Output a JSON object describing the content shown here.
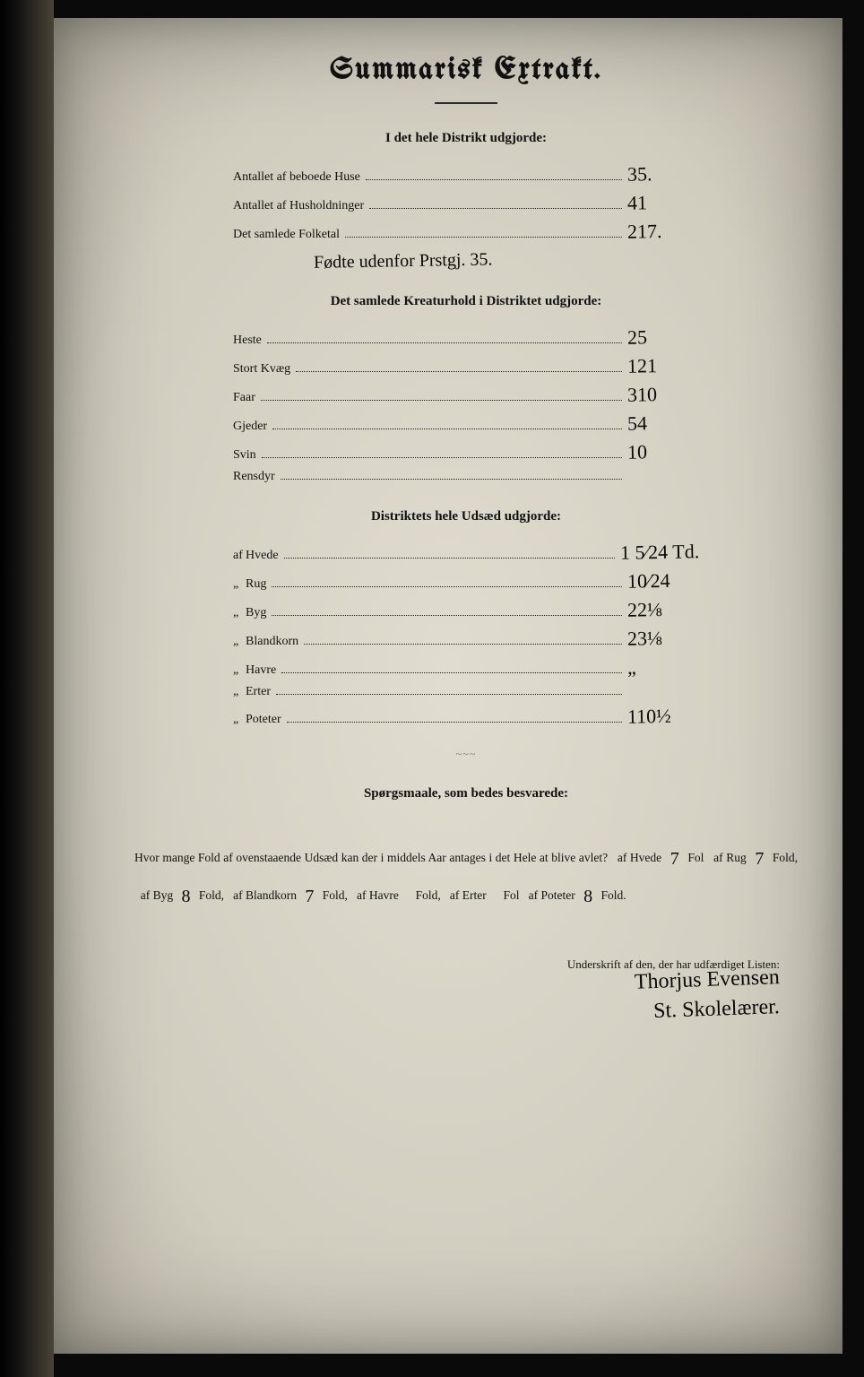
{
  "title": "Summarisk Extrakt.",
  "section1": {
    "heading": "I det hele Distrikt udgjorde:",
    "rows": [
      {
        "label": "Antallet af beboede Huse",
        "value": "35."
      },
      {
        "label": "Antallet af Husholdninger",
        "value": "41"
      },
      {
        "label": "Det samlede Folketal",
        "value": "217."
      }
    ],
    "note": "Fødte udenfor Prstgj. 35."
  },
  "section2": {
    "heading": "Det samlede Kreaturhold i Distriktet udgjorde:",
    "rows": [
      {
        "label": "Heste",
        "value": "25"
      },
      {
        "label": "Stort Kvæg",
        "value": "121"
      },
      {
        "label": "Faar",
        "value": "310"
      },
      {
        "label": "Gjeder",
        "value": "54"
      },
      {
        "label": "Svin",
        "value": "10"
      },
      {
        "label": "Rensdyr",
        "value": ""
      }
    ]
  },
  "section3": {
    "heading": "Distriktets hele Udsæd udgjorde:",
    "rows": [
      {
        "prefix": "af",
        "label": "Hvede",
        "value": "1 5⁄24 Td."
      },
      {
        "prefix": "„",
        "label": "Rug",
        "value": "10⁄24"
      },
      {
        "prefix": "„",
        "label": "Byg",
        "value": "22⅛"
      },
      {
        "prefix": "„",
        "label": "Blandkorn",
        "value": "23⅛"
      },
      {
        "prefix": "„",
        "label": "Havre",
        "value": "„"
      },
      {
        "prefix": "„",
        "label": "Erter",
        "value": ""
      },
      {
        "prefix": "„",
        "label": "Poteter",
        "value": "110½"
      }
    ]
  },
  "questions": {
    "heading": "Spørgsmaale, som bedes besvarede:",
    "text_pre": "Hvor mange Fold af ovenstaaende Udsæd kan der i middels Aar antages i det Hele at blive avlet?",
    "items": [
      {
        "label": "af Hvede",
        "value": "7",
        "tail": "Fol"
      },
      {
        "label": "af Rug",
        "value": "7",
        "tail": "Fold,"
      },
      {
        "label": "af Byg",
        "value": "8",
        "tail": "Fold,"
      },
      {
        "label": "af Blandkorn",
        "value": "7",
        "tail": "Fold,"
      },
      {
        "label": "af Havre",
        "value": "",
        "tail": "Fold,"
      },
      {
        "label": "af Erter",
        "value": "",
        "tail": "Fol"
      },
      {
        "label": "af Poteter",
        "value": "8",
        "tail": "Fold."
      }
    ]
  },
  "signature": {
    "caption": "Underskrift af den, der har udfærdiget Listen:",
    "name": "Thorjus Evensen",
    "role": "St. Skolelærer."
  },
  "colors": {
    "paper": "#d8d5c8",
    "ink": "#1a1a1a",
    "handwriting": "#0a0a0a",
    "frame": "#000000"
  }
}
